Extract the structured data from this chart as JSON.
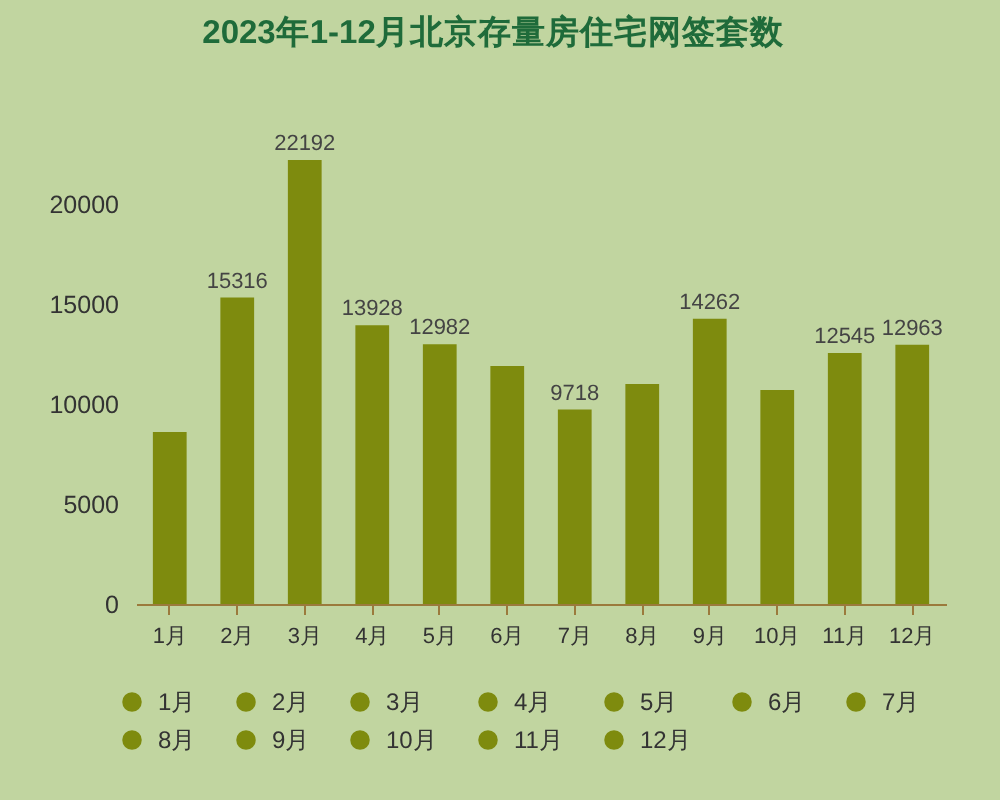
{
  "chart_data": {
    "type": "bar",
    "title": "2023年1-12月北京存量房住宅网签套数",
    "categories": [
      "1月",
      "2月",
      "3月",
      "4月",
      "5月",
      "6月",
      "7月",
      "8月",
      "9月",
      "10月",
      "11月",
      "12月"
    ],
    "series": [
      {
        "name": "1月",
        "color": "#7e8b0e",
        "values": [
          8600,
          null,
          null,
          null,
          null,
          null,
          null,
          null,
          null,
          null,
          null,
          null
        ],
        "value_labels": [
          null,
          null,
          null,
          null,
          null,
          null,
          null,
          null,
          null,
          null,
          null,
          null
        ]
      },
      {
        "name": "2月",
        "color": "#7e8b0e",
        "values": [
          null,
          15316,
          null,
          null,
          null,
          null,
          null,
          null,
          null,
          null,
          null,
          null
        ],
        "value_labels": [
          null,
          "15316",
          null,
          null,
          null,
          null,
          null,
          null,
          null,
          null,
          null,
          null
        ]
      },
      {
        "name": "3月",
        "color": "#7e8b0e",
        "values": [
          null,
          null,
          22192,
          null,
          null,
          null,
          null,
          null,
          null,
          null,
          null,
          null
        ],
        "value_labels": [
          null,
          null,
          "22192",
          null,
          null,
          null,
          null,
          null,
          null,
          null,
          null,
          null
        ]
      },
      {
        "name": "4月",
        "color": "#7e8b0e",
        "values": [
          null,
          null,
          null,
          13928,
          null,
          null,
          null,
          null,
          null,
          null,
          null,
          null
        ],
        "value_labels": [
          null,
          null,
          null,
          "13928",
          null,
          null,
          null,
          null,
          null,
          null,
          null,
          null
        ]
      },
      {
        "name": "5月",
        "color": "#7e8b0e",
        "values": [
          null,
          null,
          null,
          null,
          12982,
          null,
          null,
          null,
          null,
          null,
          null,
          null
        ],
        "value_labels": [
          null,
          null,
          null,
          null,
          "12982",
          null,
          null,
          null,
          null,
          null,
          null,
          null
        ]
      },
      {
        "name": "6月",
        "color": "#7e8b0e",
        "values": [
          null,
          null,
          null,
          null,
          null,
          11900,
          null,
          null,
          null,
          null,
          null,
          null
        ],
        "value_labels": [
          null,
          null,
          null,
          null,
          null,
          null,
          null,
          null,
          null,
          null,
          null,
          null
        ]
      },
      {
        "name": "7月",
        "color": "#7e8b0e",
        "values": [
          null,
          null,
          null,
          null,
          null,
          null,
          9718,
          null,
          null,
          null,
          null,
          null
        ],
        "value_labels": [
          null,
          null,
          null,
          null,
          null,
          null,
          "9718",
          null,
          null,
          null,
          null,
          null
        ]
      },
      {
        "name": "8月",
        "color": "#7e8b0e",
        "values": [
          null,
          null,
          null,
          null,
          null,
          null,
          null,
          11000,
          null,
          null,
          null,
          null
        ],
        "value_labels": [
          null,
          null,
          null,
          null,
          null,
          null,
          null,
          null,
          null,
          null,
          null,
          null
        ]
      },
      {
        "name": "9月",
        "color": "#7e8b0e",
        "values": [
          null,
          null,
          null,
          null,
          null,
          null,
          null,
          null,
          14262,
          null,
          null,
          null
        ],
        "value_labels": [
          null,
          null,
          null,
          null,
          null,
          null,
          null,
          null,
          "14262",
          null,
          null,
          null
        ]
      },
      {
        "name": "10月",
        "color": "#7e8b0e",
        "values": [
          null,
          null,
          null,
          null,
          null,
          null,
          null,
          null,
          null,
          10700,
          null,
          null
        ],
        "value_labels": [
          null,
          null,
          null,
          null,
          null,
          null,
          null,
          null,
          null,
          null,
          null,
          null
        ]
      },
      {
        "name": "11月",
        "color": "#7e8b0e",
        "values": [
          null,
          null,
          null,
          null,
          null,
          null,
          null,
          null,
          null,
          null,
          12545,
          null
        ],
        "value_labels": [
          null,
          null,
          null,
          null,
          null,
          null,
          null,
          null,
          null,
          null,
          "12545",
          null
        ]
      },
      {
        "name": "12月",
        "color": "#7e8b0e",
        "values": [
          null,
          null,
          null,
          null,
          null,
          null,
          null,
          null,
          null,
          null,
          null,
          12963
        ],
        "value_labels": [
          null,
          null,
          null,
          null,
          null,
          null,
          null,
          null,
          null,
          null,
          null,
          "12963"
        ]
      }
    ],
    "stacked": true,
    "ylim": [
      0,
      22192
    ],
    "yticks": [
      0,
      5000,
      10000,
      15000,
      20000
    ],
    "legend": "bottom"
  }
}
